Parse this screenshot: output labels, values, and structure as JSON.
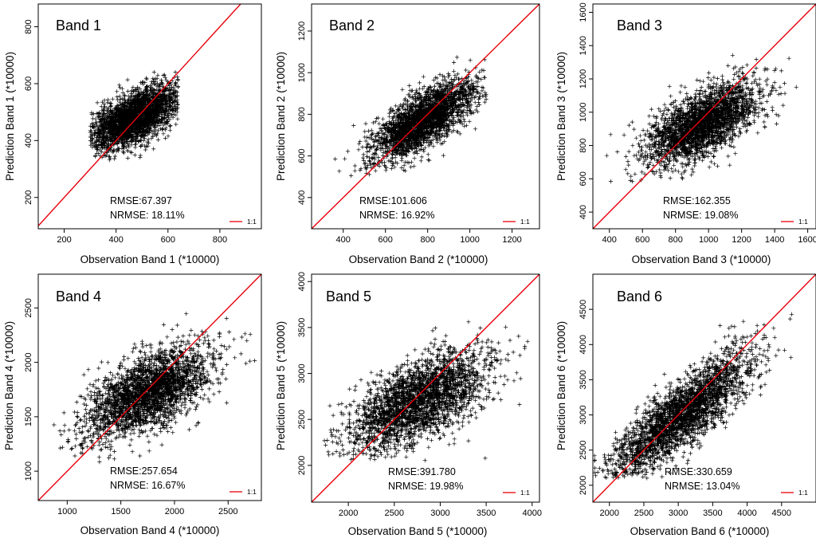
{
  "chart_data": [
    {
      "type": "scatter",
      "title": "Band 1",
      "xlabel": "Observation Band 1 (*10000)",
      "ylabel": "Prediction Band 1 (*10000)",
      "xlim": [
        100,
        960
      ],
      "ylim": [
        90,
        880
      ],
      "xticks": [
        200,
        400,
        600,
        800
      ],
      "yticks": [
        200,
        400,
        600,
        800
      ],
      "rmse": "RMSE:67.397",
      "nrmse": "NRMSE: 18.11%",
      "legend_label": "1:1",
      "cloud": {
        "x_range": [
          300,
          640
        ],
        "y_range": [
          320,
          690
        ],
        "mean": [
          470,
          480
        ],
        "sd": [
          85,
          55
        ],
        "corr": 0.6,
        "hard_edges": true
      }
    },
    {
      "type": "scatter",
      "title": "Band 2",
      "xlabel": "Observation Band 2 (*10000)",
      "ylabel": "Prediction Band 2 (*10000)",
      "xlim": [
        250,
        1330
      ],
      "ylim": [
        250,
        1330
      ],
      "xticks": [
        400,
        600,
        800,
        1000,
        1200
      ],
      "yticks": [
        400,
        600,
        800,
        1000,
        1200
      ],
      "rmse": "RMSE:101.606",
      "nrmse": "NRMSE: 16.92%",
      "legend_label": "1:1",
      "cloud": {
        "x_range": [
          360,
          1080
        ],
        "y_range": [
          500,
          1100
        ],
        "mean": [
          780,
          770
        ],
        "sd": [
          120,
          95
        ],
        "corr": 0.72,
        "hard_edges": false
      }
    },
    {
      "type": "scatter",
      "title": "Band 3",
      "xlabel": "Observation Band 3 (*10000)",
      "ylabel": "Prediction Band 3 (*10000)",
      "xlim": [
        300,
        1650
      ],
      "ylim": [
        300,
        1650
      ],
      "xticks": [
        400,
        600,
        800,
        1000,
        1200,
        1400,
        1600
      ],
      "yticks": [
        400,
        600,
        800,
        1000,
        1200,
        1400,
        1600
      ],
      "rmse": "RMSE:162.355",
      "nrmse": "NRMSE: 19.08%",
      "legend_label": "1:1",
      "cloud": {
        "x_range": [
          380,
          1650
        ],
        "y_range": [
          560,
          1420
        ],
        "mean": [
          960,
          930
        ],
        "sd": [
          170,
          120
        ],
        "corr": 0.6,
        "hard_edges": false
      }
    },
    {
      "type": "scatter",
      "title": "Band 4",
      "xlabel": "Observation Band 4 (*10000)",
      "ylabel": "Prediction Band 4 (*10000)",
      "xlim": [
        730,
        2810
      ],
      "ylim": [
        730,
        2810
      ],
      "xticks": [
        1000,
        1500,
        2000,
        2500
      ],
      "yticks": [
        1000,
        1500,
        2000,
        2500
      ],
      "rmse": "RMSE:257.654",
      "nrmse": "NRMSE: 16.67%",
      "legend_label": "1:1",
      "cloud": {
        "x_range": [
          740,
          2810
        ],
        "y_range": [
          1080,
          2580
        ],
        "mean": [
          1750,
          1720
        ],
        "sd": [
          300,
          210
        ],
        "corr": 0.6,
        "hard_edges": false
      }
    },
    {
      "type": "scatter",
      "title": "Band 5",
      "xlabel": "Observation Band 5 (*10000)",
      "ylabel": "Prediction Band 5 (*10000)",
      "xlim": [
        1600,
        4080
      ],
      "ylim": [
        1600,
        4080
      ],
      "xticks": [
        2000,
        2500,
        3000,
        3500,
        4000
      ],
      "yticks": [
        2000,
        2500,
        3000,
        3500,
        4000
      ],
      "rmse": "RMSE:391.780",
      "nrmse": "NRMSE: 19.98%",
      "legend_label": "1:1",
      "cloud": {
        "x_range": [
          1610,
          4070
        ],
        "y_range": [
          2050,
          3850
        ],
        "mean": [
          2760,
          2700
        ],
        "sd": [
          380,
          270
        ],
        "corr": 0.62,
        "hard_edges": false
      }
    },
    {
      "type": "scatter",
      "title": "Band 6",
      "xlabel": "Observation Band 6 (*10000)",
      "ylabel": "Prediction Band 6 (*10000)",
      "xlim": [
        1760,
        5000
      ],
      "ylim": [
        1760,
        5000
      ],
      "xticks": [
        2000,
        2500,
        3000,
        3500,
        4000,
        4500
      ],
      "yticks": [
        2000,
        2500,
        3000,
        3500,
        4000,
        4500
      ],
      "rmse": "RMSE:330.659",
      "nrmse": "NRMSE: 13.04%",
      "legend_label": "1:1",
      "cloud": {
        "x_range": [
          1770,
          4800
        ],
        "y_range": [
          2100,
          4650
        ],
        "mean": [
          3050,
          3000
        ],
        "sd": [
          520,
          450
        ],
        "corr": 0.85,
        "hard_edges": false
      }
    }
  ],
  "colors": {
    "identity_line": "#e8000b",
    "points": "#000000",
    "axis": "#000000"
  }
}
